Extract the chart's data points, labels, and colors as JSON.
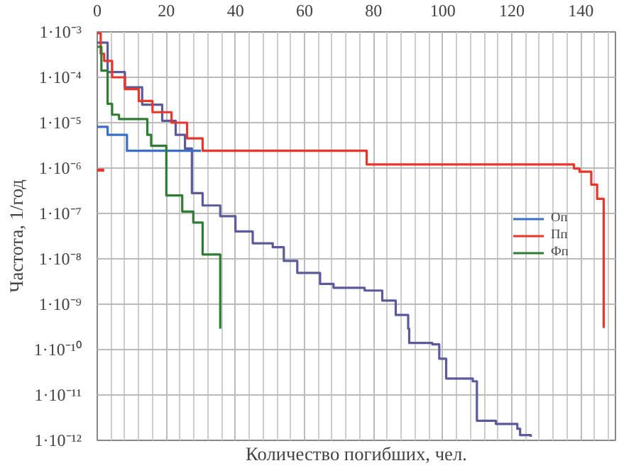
{
  "chart_data": {
    "type": "step",
    "xlabel": "Количество погибших, чел.",
    "ylabel": "Частота, 1/год",
    "log": "y",
    "grid": true,
    "legend": "right",
    "xlim": [
      0,
      150
    ],
    "xticks": [
      0,
      20,
      40,
      60,
      80,
      100,
      120,
      140
    ],
    "ylim": [
      1e-12,
      0.001
    ],
    "yticks": [
      {
        "value": 0.001,
        "label": "1·10⁻³"
      },
      {
        "value": 0.0001,
        "label": "1·10⁻⁴"
      },
      {
        "value": 1e-05,
        "label": "1·10⁻⁵"
      },
      {
        "value": 1e-06,
        "label": "1·10⁻⁶"
      },
      {
        "value": 1e-07,
        "label": "1·10⁻⁷"
      },
      {
        "value": 1e-08,
        "label": "1·10⁻⁸"
      },
      {
        "value": 1e-09,
        "label": "1·10⁻⁹"
      },
      {
        "value": 1e-10,
        "label": "1·10⁻¹⁰"
      },
      {
        "value": 1e-11,
        "label": "1·10⁻¹¹"
      },
      {
        "value": 1e-12,
        "label": "1·10⁻¹²"
      }
    ],
    "series": [
      {
        "color": "#5b5b9b",
        "x": [
          0,
          3,
          8,
          13,
          18.8,
          22.7,
          25.4,
          27.4,
          30.5,
          35.6,
          40,
          45,
          50.8,
          54,
          57.9,
          64.5,
          68.4,
          77.4,
          82.5,
          86.4,
          90,
          90.3,
          97,
          99,
          101,
          108.7,
          109.9,
          115.4,
          121.6,
          122.4,
          125.5
        ],
        "values": [
          0.00058,
          0.00013,
          6e-05,
          2.5e-05,
          1.1e-05,
          5.4e-06,
          2.7e-06,
          2.8e-07,
          1.5e-07,
          8.7e-08,
          4e-08,
          2.2e-08,
          1.8e-08,
          9e-09,
          4.9e-09,
          2.8e-09,
          2.3e-09,
          2e-09,
          1.2e-09,
          5.8e-10,
          2.9e-10,
          1.4e-10,
          1.3e-10,
          6.3e-11,
          2.3e-11,
          2e-11,
          2.7e-12,
          2.3e-12,
          1.8e-12,
          1.3e-12,
          1.2e-12
        ]
      },
      {
        "name": "Оп",
        "color": "#3a6fc8",
        "x": [
          0,
          3,
          8.6,
          30
        ],
        "values": [
          8.1e-06,
          5.4e-06,
          2.4e-06,
          2.4e-06
        ]
      },
      {
        "name": "Пп",
        "color": "#e8372a",
        "x": [
          0,
          1,
          2,
          4.3,
          8,
          12,
          16,
          21.5,
          26,
          30.5,
          78,
          138,
          139.6,
          143,
          144.7,
          146.6
        ],
        "values": [
          0.00093,
          0.00033,
          0.00023,
          0.0001,
          5.5e-05,
          3e-05,
          1.7e-05,
          1e-05,
          4.5e-06,
          2.4e-06,
          1.2e-06,
          9.8e-07,
          8.3e-07,
          4.3e-07,
          2.1e-07,
          3e-10
        ]
      },
      {
        "name": "Фп",
        "color": "#2e7d32",
        "x": [
          0,
          1.2,
          3,
          4.3,
          6.3,
          14.5,
          15.6,
          20,
          24.6,
          27.8,
          30.5,
          35.6
        ],
        "values": [
          0.00047,
          0.00014,
          2.6e-05,
          1.5e-05,
          1.2e-05,
          5.4e-06,
          3.1e-06,
          2.5e-07,
          1.1e-07,
          6.3e-08,
          1.25e-08,
          2.9e-10
        ]
      },
      {
        "type": "line",
        "color": "#e8372a",
        "x": [
          0,
          2
        ],
        "values": [
          9e-07,
          9e-07
        ]
      }
    ]
  }
}
